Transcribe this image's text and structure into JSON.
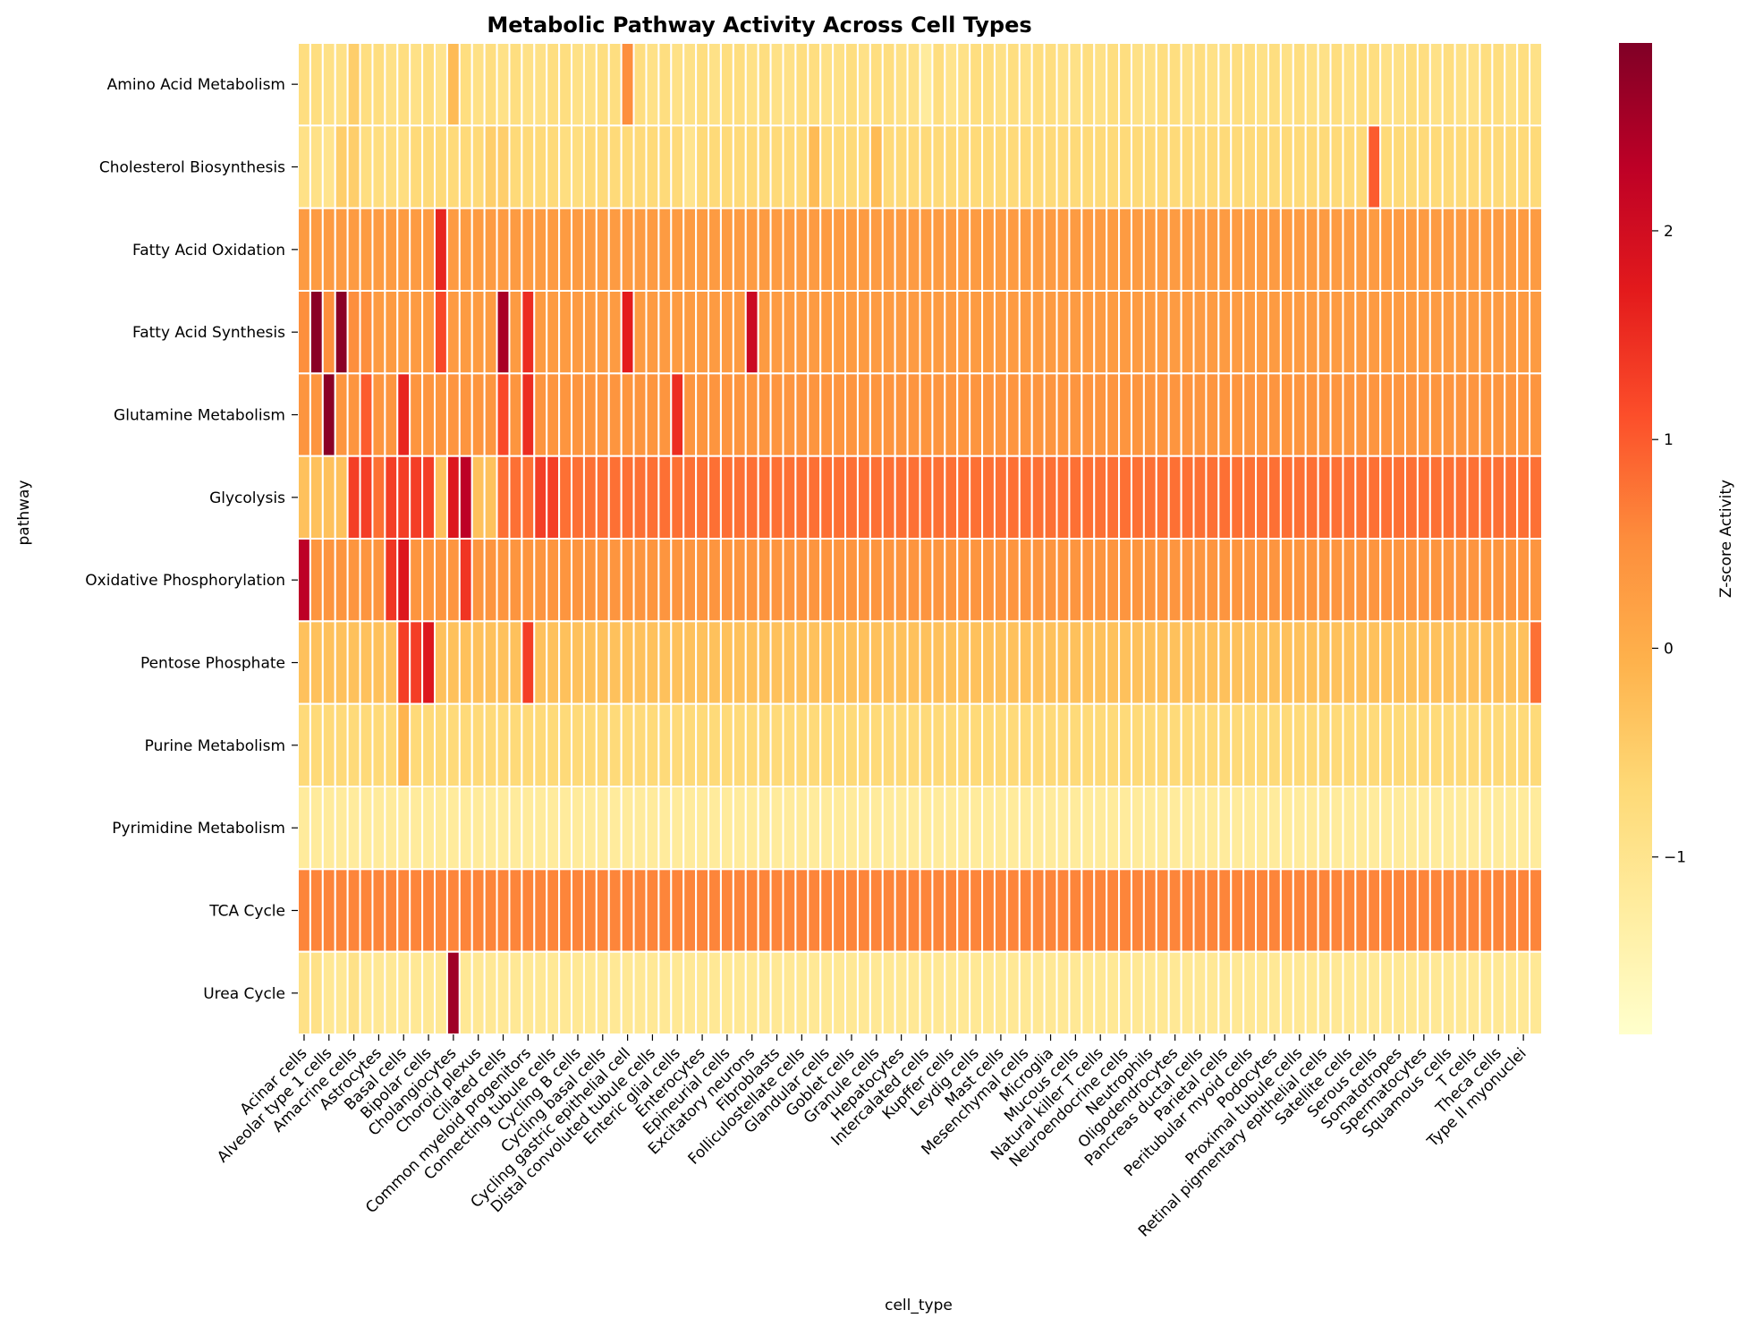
{
  "chart_data": {
    "type": "heatmap",
    "title": "Metabolic Pathway Activity Across Cell Types",
    "xlabel": "cell_type",
    "ylabel": "pathway",
    "colorbar_label": "Z-score Activity",
    "colormap": "YlOrRd",
    "vmin": -1.85,
    "vmax": 2.9,
    "colorbar_ticks": [
      2,
      1,
      0,
      -1
    ],
    "colorbar_tick_labels": [
      "2",
      "1",
      "0",
      "−1"
    ],
    "y_categories": [
      "Amino Acid Metabolism",
      "Cholesterol Biosynthesis",
      "Fatty Acid Oxidation",
      "Fatty Acid Synthesis",
      "Glutamine Metabolism",
      "Glycolysis",
      "Oxidative Phosphorylation",
      "Pentose Phosphate",
      "Purine Metabolism",
      "Pyrimidine Metabolism",
      "TCA Cycle",
      "Urea Cycle"
    ],
    "x_tick_labels": [
      "Acinar cells",
      "Alveolar type 1 cells",
      "Amacrine cells",
      "Astrocytes",
      "Basal cells",
      "Bipolar cells",
      "Cholangiocytes",
      "Choroid plexus",
      "Ciliated cells",
      "Common myeloid progenitors",
      "Connecting tubule cells",
      "Cycling B cells",
      "Cycling basal cells",
      "Cycling gastric epithelial cell",
      "Distal convoluted tubule cells",
      "Enteric glial cells",
      "Enterocytes",
      "Epineurial cells",
      "Excitatory neurons",
      "Fibroblasts",
      "Folliculostellate cells",
      "Glandular cells",
      "Goblet cells",
      "Granule cells",
      "Hepatocytes",
      "Intercalated cells",
      "Kupffer cells",
      "Leydig cells",
      "Mast cells",
      "Mesenchymal cells",
      "Microglia",
      "Mucous cells",
      "Natural killer T cells",
      "Neuroendocrine cells",
      "Neutrophils",
      "Oligodendrocytes",
      "Pancreas ductal cells",
      "Parietal cells",
      "Peritubular myoid cells",
      "Podocytes",
      "Proximal tubule cells",
      "Retinal pigmentary epithelial cells",
      "Satellite cells",
      "Serous cells",
      "Somatotropes",
      "Spermatocytes",
      "Squamous cells",
      "T cells",
      "Theca cells",
      "Type II myonuclei"
    ],
    "n_columns": 100,
    "values": [
      [
        -0.8,
        -0.8,
        -0.9,
        -0.9,
        -0.5,
        -0.8,
        -0.8,
        -0.9,
        -0.8,
        -0.9,
        -0.8,
        -1.0,
        -0.2,
        -0.8,
        -0.9,
        -0.8,
        -0.9,
        -0.8,
        -0.9,
        -0.9,
        -0.8,
        -0.8,
        -0.9,
        -0.9,
        -0.8,
        -0.8,
        0.5,
        -0.8,
        -0.9,
        -0.8,
        -0.9,
        -0.9,
        -0.8,
        -0.9,
        -0.8,
        -0.8,
        -0.9,
        -0.8,
        -0.9,
        -0.9,
        -0.8,
        -0.8,
        -0.9,
        -0.9,
        -0.8,
        -0.9,
        -0.8,
        -0.8,
        -0.9,
        -0.9,
        -1.2,
        -0.8,
        -1.0,
        -0.9,
        -0.8,
        -0.8,
        -0.9,
        -0.8,
        -0.9,
        -0.8,
        -0.8,
        -0.9,
        -0.9,
        -0.8,
        -0.9,
        -0.8,
        -0.8,
        -0.9,
        -0.9,
        -0.8,
        -0.8,
        -0.9,
        -0.8,
        -0.9,
        -0.9,
        -0.8,
        -0.8,
        -0.9,
        -0.8,
        -0.9,
        -0.8,
        -0.9,
        -0.9,
        -0.8,
        -0.9,
        -0.8,
        -0.8,
        -0.9,
        -0.9,
        -0.8,
        -0.8,
        -0.9,
        -0.8,
        -0.9,
        -0.9,
        -0.8,
        -0.8,
        -0.9,
        -0.8,
        -0.9
      ],
      [
        -0.9,
        -0.9,
        -1.0,
        -0.5,
        -0.5,
        -0.8,
        -0.8,
        -0.8,
        -0.8,
        -0.7,
        -0.7,
        -0.7,
        -0.7,
        -0.7,
        -0.7,
        -0.5,
        -0.5,
        -0.7,
        -0.7,
        -0.7,
        -0.7,
        -0.8,
        -0.8,
        -0.7,
        -0.7,
        -0.7,
        -0.7,
        -0.7,
        -0.7,
        -0.7,
        -0.7,
        -1.0,
        -0.7,
        -0.7,
        -0.7,
        -0.7,
        -0.7,
        -0.7,
        -0.7,
        -0.7,
        -0.7,
        -0.2,
        -0.7,
        -0.7,
        -0.7,
        -0.7,
        -0.2,
        -0.7,
        -0.7,
        -0.7,
        -0.7,
        -0.7,
        -0.7,
        -0.7,
        -0.7,
        -0.7,
        -0.7,
        -0.7,
        -0.7,
        -0.7,
        -0.7,
        -0.7,
        -0.7,
        -0.7,
        -0.7,
        -0.7,
        -0.7,
        -0.7,
        -0.7,
        -0.7,
        -0.7,
        -0.7,
        -0.7,
        -0.7,
        -0.7,
        -0.7,
        -0.7,
        -0.7,
        -0.7,
        -0.7,
        -0.7,
        -0.7,
        -0.7,
        -0.7,
        -0.7,
        -0.7,
        1.0,
        -0.7,
        -0.7,
        -0.7,
        -0.7,
        -0.7,
        -0.7,
        -0.7,
        -0.7,
        -0.7,
        -0.7,
        -0.7,
        -0.7,
        -0.7
      ],
      [
        0.3,
        0.3,
        0.3,
        0.3,
        0.3,
        0.3,
        0.3,
        0.3,
        0.3,
        0.3,
        0.3,
        1.6,
        0.3,
        0.3,
        0.3,
        0.3,
        0.3,
        0.3,
        0.3,
        0.3,
        0.3,
        0.3,
        0.3,
        0.3,
        0.3,
        0.3,
        0.3,
        0.3,
        0.3,
        0.3,
        0.3,
        0.3,
        0.3,
        0.3,
        0.3,
        0.3,
        0.3,
        0.3,
        0.3,
        0.3,
        0.3,
        0.3,
        0.3,
        0.3,
        0.3,
        0.3,
        0.3,
        0.3,
        0.3,
        0.3,
        0.3,
        0.3,
        0.3,
        0.3,
        0.3,
        0.3,
        0.3,
        0.3,
        0.3,
        0.3,
        0.3,
        0.3,
        0.3,
        0.3,
        0.3,
        0.3,
        0.3,
        0.3,
        0.3,
        0.3,
        0.3,
        0.3,
        0.3,
        0.3,
        0.3,
        0.3,
        0.3,
        0.3,
        0.3,
        0.3,
        0.3,
        0.3,
        0.3,
        0.3,
        0.3,
        0.3,
        0.3,
        0.3,
        0.3,
        0.3,
        0.3,
        0.3,
        0.3,
        0.3,
        0.3,
        0.3,
        0.3,
        0.3,
        0.3,
        0.3
      ],
      [
        0.5,
        2.8,
        0.5,
        2.8,
        0.5,
        0.5,
        0.3,
        0.3,
        0.3,
        0.3,
        0.3,
        1.2,
        0.3,
        0.3,
        0.3,
        0.3,
        2.5,
        0.3,
        1.5,
        0.3,
        0.3,
        0.3,
        0.3,
        0.3,
        0.3,
        0.3,
        1.7,
        0.3,
        0.3,
        0.3,
        0.3,
        0.3,
        0.3,
        0.3,
        0.3,
        0.3,
        2.1,
        0.3,
        0.3,
        0.3,
        0.3,
        0.3,
        0.3,
        0.3,
        0.3,
        0.3,
        0.3,
        0.3,
        0.3,
        0.3,
        0.3,
        0.3,
        0.3,
        0.3,
        0.3,
        0.3,
        0.3,
        0.3,
        0.3,
        0.3,
        0.3,
        0.3,
        0.3,
        0.3,
        0.3,
        0.3,
        0.3,
        0.3,
        0.3,
        0.3,
        0.3,
        0.3,
        0.3,
        0.3,
        0.3,
        0.3,
        0.3,
        0.3,
        0.3,
        0.3,
        0.3,
        0.3,
        0.3,
        0.3,
        0.3,
        0.3,
        0.3,
        0.3,
        0.3,
        0.3,
        0.3,
        0.3,
        0.3,
        0.3,
        0.3,
        0.3,
        0.3,
        0.3,
        0.3,
        0.3
      ],
      [
        0.4,
        0.4,
        2.8,
        0.4,
        0.4,
        1.0,
        0.4,
        0.4,
        1.6,
        0.4,
        0.4,
        0.4,
        0.4,
        0.4,
        0.4,
        0.4,
        1.2,
        0.4,
        1.5,
        0.4,
        0.4,
        0.4,
        0.4,
        0.4,
        0.4,
        0.4,
        0.4,
        0.4,
        0.4,
        0.4,
        1.5,
        0.4,
        0.4,
        0.4,
        0.4,
        0.4,
        0.4,
        0.4,
        0.4,
        0.4,
        0.4,
        0.4,
        0.4,
        0.4,
        0.4,
        0.4,
        0.4,
        0.4,
        0.4,
        0.4,
        0.4,
        0.4,
        0.4,
        0.4,
        0.4,
        0.4,
        0.4,
        0.4,
        0.4,
        0.4,
        0.4,
        0.4,
        0.4,
        0.4,
        0.4,
        0.4,
        0.4,
        0.4,
        0.4,
        0.4,
        0.4,
        0.4,
        0.4,
        0.4,
        0.4,
        0.4,
        0.4,
        0.4,
        0.4,
        0.4,
        0.4,
        0.4,
        0.4,
        0.4,
        0.4,
        0.4,
        0.4,
        0.4,
        0.4,
        0.4,
        0.4,
        0.4,
        0.4,
        0.4,
        0.4,
        0.4,
        0.4,
        0.4,
        0.4,
        0.4
      ],
      [
        -0.3,
        -0.3,
        -0.3,
        -0.3,
        1.3,
        1.3,
        0.8,
        1.3,
        1.3,
        1.3,
        1.3,
        -0.3,
        1.8,
        2.3,
        -0.3,
        -0.3,
        0.8,
        0.8,
        0.8,
        1.3,
        1.3,
        0.8,
        0.8,
        0.8,
        0.8,
        0.8,
        0.8,
        0.8,
        0.8,
        0.8,
        0.8,
        0.8,
        0.8,
        0.8,
        0.8,
        0.8,
        0.8,
        0.8,
        0.8,
        0.8,
        0.8,
        0.8,
        0.8,
        0.8,
        0.8,
        0.8,
        0.8,
        0.8,
        0.8,
        0.8,
        0.8,
        0.8,
        0.8,
        0.8,
        0.8,
        0.8,
        0.8,
        0.8,
        0.8,
        0.8,
        0.8,
        0.8,
        0.8,
        0.8,
        0.8,
        0.8,
        0.8,
        0.8,
        0.8,
        0.8,
        0.8,
        0.8,
        0.8,
        0.8,
        0.8,
        0.8,
        0.8,
        0.8,
        0.8,
        0.8,
        0.8,
        0.8,
        0.8,
        0.8,
        0.8,
        0.8,
        0.8,
        0.8,
        0.8,
        0.8,
        0.8,
        0.8,
        0.8,
        0.8,
        0.8,
        0.8,
        0.8,
        0.8,
        0.8,
        0.8
      ],
      [
        2.3,
        0.4,
        0.4,
        0.4,
        0.4,
        0.4,
        0.4,
        1.4,
        1.8,
        0.4,
        0.4,
        0.4,
        0.4,
        1.4,
        0.4,
        0.4,
        0.4,
        0.4,
        0.4,
        0.4,
        0.4,
        0.4,
        0.4,
        0.4,
        0.4,
        0.4,
        0.4,
        0.4,
        0.4,
        0.4,
        0.4,
        0.4,
        0.4,
        0.4,
        0.4,
        0.4,
        0.4,
        0.4,
        0.4,
        0.4,
        0.4,
        0.4,
        0.4,
        0.4,
        0.4,
        0.4,
        0.4,
        0.4,
        0.4,
        0.4,
        0.4,
        0.4,
        0.4,
        0.4,
        0.4,
        0.4,
        0.4,
        0.4,
        0.4,
        0.4,
        0.4,
        0.4,
        0.4,
        0.4,
        0.4,
        0.4,
        0.4,
        0.4,
        0.4,
        0.4,
        0.4,
        0.4,
        0.4,
        0.4,
        0.4,
        0.4,
        0.4,
        0.4,
        0.4,
        0.4,
        0.4,
        0.4,
        0.4,
        0.4,
        0.4,
        0.4,
        0.4,
        0.4,
        0.4,
        0.4,
        0.4,
        0.4,
        0.4,
        0.4,
        0.4,
        0.4,
        0.4,
        0.4,
        0.4,
        0.4
      ],
      [
        -0.3,
        -0.3,
        -0.3,
        -0.3,
        -0.3,
        -0.3,
        -0.3,
        -0.3,
        1.3,
        1.3,
        1.8,
        -0.3,
        -0.3,
        -0.3,
        -0.3,
        -0.3,
        -0.3,
        -0.3,
        1.3,
        -0.3,
        -0.3,
        -0.3,
        -0.3,
        -0.3,
        -0.3,
        -0.3,
        -0.3,
        -0.3,
        -0.3,
        -0.3,
        -0.3,
        -0.3,
        -0.3,
        -0.3,
        -0.3,
        -0.3,
        -0.3,
        -0.3,
        -0.3,
        -0.3,
        -0.3,
        -0.3,
        -0.3,
        -0.3,
        -0.3,
        -0.3,
        -0.3,
        -0.3,
        -0.3,
        -0.3,
        -0.3,
        -0.3,
        -0.3,
        -0.3,
        -0.3,
        -0.3,
        -0.3,
        -0.3,
        -0.3,
        -0.3,
        -0.3,
        -0.3,
        -0.3,
        -0.3,
        -0.3,
        -0.3,
        -0.3,
        -0.3,
        -0.3,
        -0.3,
        -0.3,
        -0.3,
        -0.3,
        -0.3,
        -0.3,
        -0.3,
        -0.3,
        -0.3,
        -0.3,
        -0.3,
        -0.3,
        -0.3,
        -0.3,
        -0.3,
        -0.3,
        -0.3,
        -0.3,
        -0.3,
        -0.3,
        -0.3,
        -0.3,
        -0.3,
        -0.3,
        -0.3,
        -0.3,
        -0.3,
        -0.3,
        -0.3,
        -0.3,
        0.8
      ],
      [
        -0.7,
        -0.7,
        -0.7,
        -0.7,
        -0.7,
        -0.7,
        -0.7,
        -0.7,
        -0.1,
        -0.7,
        -0.7,
        -0.7,
        -0.7,
        -0.7,
        -0.7,
        -0.7,
        -0.7,
        -0.7,
        -0.7,
        -0.7,
        -0.7,
        -0.7,
        -0.7,
        -0.7,
        -0.7,
        -0.7,
        -0.7,
        -0.7,
        -0.7,
        -0.7,
        -0.7,
        -0.7,
        -0.7,
        -0.7,
        -0.7,
        -0.7,
        -0.7,
        -0.7,
        -0.7,
        -0.7,
        -0.7,
        -0.7,
        -0.7,
        -0.7,
        -0.7,
        -0.7,
        -0.7,
        -0.7,
        -0.7,
        -0.7,
        -0.7,
        -0.7,
        -0.7,
        -0.7,
        -0.7,
        -0.7,
        -0.7,
        -0.7,
        -0.7,
        -0.7,
        -0.7,
        -0.7,
        -0.7,
        -0.7,
        -0.7,
        -0.7,
        -0.7,
        -0.7,
        -0.7,
        -0.7,
        -0.7,
        -0.7,
        -0.7,
        -0.7,
        -0.7,
        -0.7,
        -0.7,
        -0.7,
        -0.7,
        -0.7,
        -0.7,
        -0.7,
        -0.7,
        -0.7,
        -0.7,
        -0.7,
        -0.7,
        -0.7,
        -0.7,
        -0.7,
        -0.7,
        -0.7,
        -0.7,
        -0.7,
        -0.7,
        -0.7,
        -0.7,
        -0.7,
        -0.7,
        -0.7
      ],
      [
        -1.2,
        -1.2,
        -1.2,
        -1.2,
        -1.2,
        -1.2,
        -1.2,
        -1.2,
        -1.2,
        -1.2,
        -1.2,
        -1.2,
        -1.2,
        -1.2,
        -1.2,
        -1.2,
        -1.2,
        -1.2,
        -1.2,
        -1.2,
        -1.2,
        -1.2,
        -1.2,
        -1.2,
        -1.2,
        -1.2,
        -1.2,
        -1.2,
        -1.2,
        -1.2,
        -1.2,
        -1.2,
        -1.2,
        -1.2,
        -1.2,
        -1.2,
        -1.2,
        -1.2,
        -1.2,
        -1.2,
        -1.2,
        -1.2,
        -1.2,
        -1.2,
        -1.2,
        -1.2,
        -1.2,
        -1.2,
        -1.2,
        -1.2,
        -1.2,
        -1.2,
        -1.2,
        -1.2,
        -1.2,
        -1.2,
        -1.2,
        -1.2,
        -1.2,
        -1.2,
        -1.2,
        -1.2,
        -1.2,
        -1.2,
        -1.2,
        -1.2,
        -1.2,
        -1.2,
        -1.2,
        -1.2,
        -1.2,
        -1.2,
        -1.2,
        -1.2,
        -1.2,
        -1.2,
        -1.2,
        -1.2,
        -1.2,
        -1.2,
        -1.2,
        -1.2,
        -1.2,
        -1.2,
        -1.2,
        -1.2,
        -1.2,
        -1.2,
        -1.2,
        -1.2,
        -1.2,
        -1.2,
        -1.2,
        -1.2,
        -1.2,
        -1.2,
        -1.2,
        -1.2,
        -1.2,
        -1.2
      ],
      [
        0.6,
        0.6,
        0.6,
        0.6,
        0.6,
        0.6,
        0.6,
        0.6,
        0.6,
        0.6,
        0.6,
        0.6,
        0.6,
        0.6,
        0.6,
        0.6,
        0.6,
        0.6,
        0.6,
        0.6,
        0.6,
        0.6,
        0.6,
        0.6,
        0.6,
        0.6,
        0.6,
        0.6,
        0.6,
        0.6,
        0.6,
        0.6,
        0.6,
        0.6,
        0.6,
        0.6,
        0.6,
        0.6,
        0.6,
        0.6,
        0.6,
        0.6,
        0.6,
        0.6,
        0.6,
        0.6,
        0.6,
        0.6,
        0.6,
        0.6,
        0.6,
        0.6,
        0.6,
        0.6,
        0.6,
        0.6,
        0.6,
        0.6,
        0.6,
        0.6,
        0.6,
        0.6,
        0.6,
        0.6,
        0.6,
        0.6,
        0.6,
        0.6,
        0.6,
        0.6,
        0.6,
        0.6,
        0.6,
        0.6,
        0.6,
        0.6,
        0.6,
        0.6,
        0.6,
        0.6,
        0.6,
        0.6,
        0.6,
        0.6,
        0.6,
        0.6,
        0.6,
        0.6,
        0.6,
        0.6,
        0.6,
        0.6,
        0.6,
        0.6,
        0.6,
        0.6,
        0.6,
        0.6,
        0.6,
        0.6
      ],
      [
        -0.9,
        -0.9,
        -1.1,
        -1.1,
        -0.9,
        -1.1,
        -1.1,
        -1.1,
        -1.1,
        -1.1,
        -1.1,
        -1.1,
        2.6,
        -1.1,
        -1.1,
        -1.1,
        -1.1,
        -1.1,
        -1.1,
        -1.1,
        -1.1,
        -1.1,
        -1.1,
        -1.1,
        -1.1,
        -1.1,
        -1.1,
        -1.1,
        -1.1,
        -1.1,
        -1.1,
        -1.1,
        -1.1,
        -1.1,
        -1.1,
        -1.1,
        -1.1,
        -1.1,
        -1.1,
        -1.1,
        -1.1,
        -1.1,
        -1.1,
        -1.1,
        -1.1,
        -1.1,
        -1.1,
        -1.1,
        -1.1,
        -1.1,
        -1.1,
        -1.1,
        -1.1,
        -1.1,
        -1.1,
        -1.1,
        -1.1,
        -1.1,
        -1.1,
        -1.1,
        -1.1,
        -1.1,
        -1.1,
        -1.1,
        -1.1,
        -1.1,
        -1.1,
        -1.1,
        -1.1,
        -1.1,
        -1.1,
        -1.1,
        -1.1,
        -1.1,
        -1.1,
        -1.1,
        -1.1,
        -1.1,
        -1.1,
        -1.1,
        -1.1,
        -1.1,
        -1.1,
        -1.1,
        -1.1,
        -1.1,
        -1.1,
        -1.1,
        -1.1,
        -1.1,
        -1.1,
        -1.1,
        -1.1,
        -1.1,
        -1.1,
        -1.1,
        -1.1,
        -1.1,
        -1.1,
        -1.1
      ]
    ]
  }
}
